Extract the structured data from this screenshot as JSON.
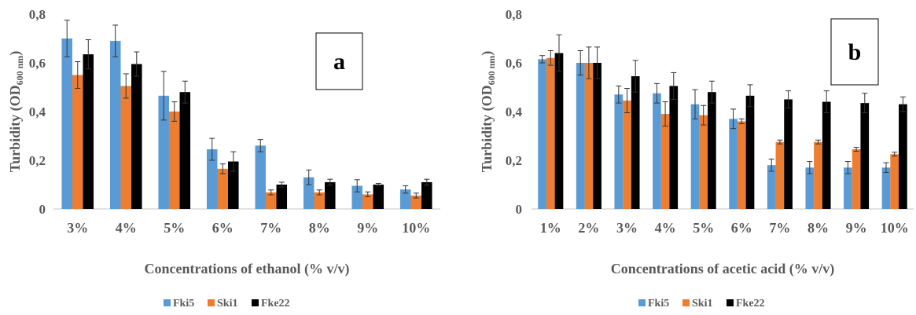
{
  "chart_data": [
    {
      "type": "bar",
      "panel_label": "a",
      "title": "",
      "xlabel": "Concentrations of ethanol (% v/v)",
      "ylabel": "Turbidity (OD",
      "ylabel_sub": "600 nm",
      "ylabel_close": ")",
      "ylim": [
        0,
        0.8
      ],
      "yticks": [
        "0",
        "0,2",
        "0,4",
        "0,6",
        "0,8"
      ],
      "grid": false,
      "legend_position": "bottom",
      "categories": [
        "3%",
        "4%",
        "5%",
        "6%",
        "7%",
        "8%",
        "9%",
        "10%"
      ],
      "series": [
        {
          "name": "Fki5",
          "color": "#5B9BD5",
          "values": [
            0.7,
            0.69,
            0.465,
            0.245,
            0.26,
            0.13,
            0.095,
            0.08
          ],
          "errors": [
            0.075,
            0.065,
            0.1,
            0.045,
            0.025,
            0.03,
            0.025,
            0.015
          ]
        },
        {
          "name": "Ski1",
          "color": "#ED7D31",
          "values": [
            0.55,
            0.505,
            0.4,
            0.165,
            0.068,
            0.068,
            0.06,
            0.055
          ],
          "errors": [
            0.055,
            0.05,
            0.04,
            0.02,
            0.01,
            0.01,
            0.01,
            0.01
          ]
        },
        {
          "name": "Fke22",
          "color": "#000000",
          "values": [
            0.635,
            0.595,
            0.48,
            0.195,
            0.1,
            0.11,
            0.1,
            0.11
          ],
          "errors": [
            0.06,
            0.05,
            0.045,
            0.04,
            0.01,
            0.012,
            0.005,
            0.012
          ]
        }
      ]
    },
    {
      "type": "bar",
      "panel_label": "b",
      "title": "",
      "xlabel": "Concentrations of acetic acid (% v/v)",
      "ylabel": "Turbidity (OD",
      "ylabel_sub": "600 nm",
      "ylabel_close": ")",
      "ylim": [
        0,
        0.8
      ],
      "yticks": [
        "0",
        "0,2",
        "0,4",
        "0,6",
        "0,8"
      ],
      "grid": false,
      "legend_position": "bottom",
      "categories": [
        "1%",
        "2%",
        "3%",
        "4%",
        "5%",
        "6%",
        "7%",
        "8%",
        "9%",
        "10%"
      ],
      "series": [
        {
          "name": "Fki5",
          "color": "#5B9BD5",
          "values": [
            0.615,
            0.6,
            0.47,
            0.475,
            0.43,
            0.37,
            0.18,
            0.17,
            0.17,
            0.17
          ],
          "errors": [
            0.015,
            0.05,
            0.035,
            0.04,
            0.06,
            0.04,
            0.025,
            0.025,
            0.025,
            0.02
          ]
        },
        {
          "name": "Ski1",
          "color": "#ED7D31",
          "values": [
            0.62,
            0.6,
            0.445,
            0.39,
            0.385,
            0.36,
            0.275,
            0.275,
            0.245,
            0.225
          ],
          "errors": [
            0.03,
            0.065,
            0.05,
            0.05,
            0.04,
            0.01,
            0.008,
            0.008,
            0.008,
            0.008
          ]
        },
        {
          "name": "Fke22",
          "color": "#000000",
          "values": [
            0.64,
            0.6,
            0.545,
            0.505,
            0.48,
            0.465,
            0.45,
            0.44,
            0.435,
            0.43
          ],
          "errors": [
            0.075,
            0.065,
            0.065,
            0.055,
            0.045,
            0.045,
            0.035,
            0.045,
            0.04,
            0.03
          ]
        }
      ]
    }
  ]
}
